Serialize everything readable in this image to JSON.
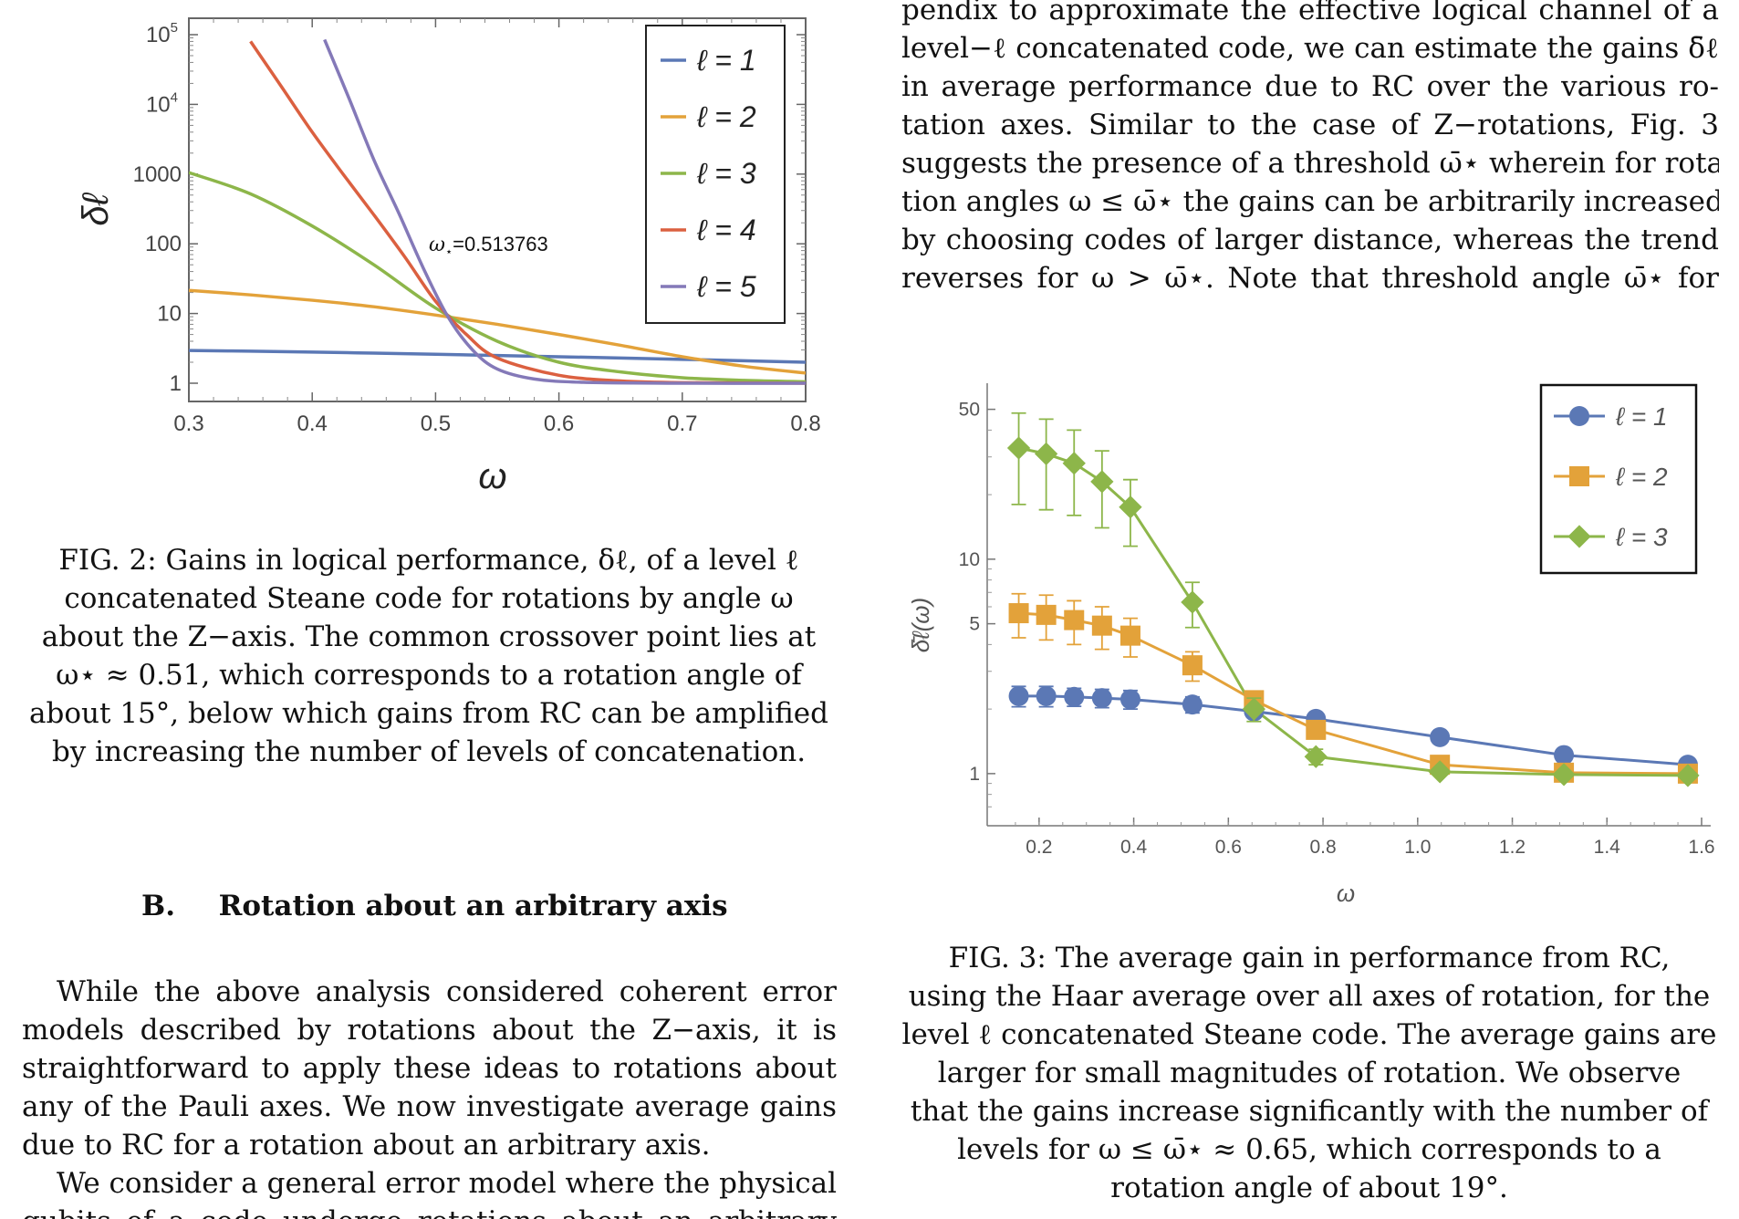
{
  "right_top_paragraph": {
    "lines": [
      "pendix to approximate the effective logical channel of a",
      "level−ℓ concatenated code, we can estimate the gains δ̄ℓ",
      "in average performance due to RC over the various ro-",
      "tation axes.  Similar to the case of Z−rotations, Fig. 3",
      "suggests the presence of a threshold ω̄⋆ wherein for rota-",
      "tion angles ω ≤ ω̄⋆ the gains can be arbitrarily increased",
      "by choosing codes of larger distance, whereas the trend",
      "reverses for ω > ω̄⋆.  Note that threshold angle ω̄⋆ for"
    ]
  },
  "fig2_caption": {
    "lines": [
      "FIG. 2: Gains in logical performance, δℓ, of a level ℓ",
      "concatenated Steane code for rotations by angle ω",
      "about the Z−axis. The common crossover point lies at",
      "ω⋆ ≈ 0.51, which corresponds to a rotation angle of",
      "about 15°, below which gains from RC can be amplified",
      "by increasing the number of levels of concatenation."
    ]
  },
  "section_heading": {
    "number": "B.",
    "title": "Rotation about an arbitrary axis"
  },
  "left_paragraph": {
    "lines": [
      "While the above analysis considered coherent error",
      "models described by rotations about the Z−axis, it is",
      "straightforward to apply these ideas to rotations about",
      "any of the Pauli axes. We now investigate average gains",
      "due to RC for a rotation about an arbitrary axis."
    ]
  },
  "left_paragraph2": {
    "lines": [
      "We consider a general error model where the physical",
      "qubits of a code undergo rotations about an arbitrary"
    ]
  },
  "fig3_caption": {
    "lines": [
      "FIG. 3: The average gain in performance from RC,",
      "using the Haar average over all axes of rotation, for the",
      "level ℓ concatenated Steane code. The average gains are",
      "larger for small magnitudes of rotation. We observe",
      "that the gains increase significantly with the number of",
      "levels for ω ≤ ω̄⋆ ≈ 0.65, which corresponds to a",
      "rotation angle of about 19°."
    ]
  },
  "chart_data": [
    {
      "type": "line",
      "figure": "FIG. 2",
      "xlabel": "ω",
      "ylabel": "δℓ",
      "xlim": [
        0.3,
        0.8
      ],
      "ylim": [
        1,
        100000
      ],
      "yscale": "log",
      "x_ticks": [
        "0.3",
        "0.4",
        "0.5",
        "0.6",
        "0.7",
        "0.8"
      ],
      "y_ticks": [
        "1",
        "10",
        "100",
        "1000",
        "10⁴",
        "10⁵"
      ],
      "annotation": "ω⋆=0.513763",
      "legend_position": "top-right",
      "series": [
        {
          "name": "ℓ = 1",
          "color": "#5b78b5",
          "x": [
            0.3,
            0.35,
            0.4,
            0.45,
            0.5,
            0.55,
            0.6,
            0.65,
            0.7,
            0.75,
            0.8
          ],
          "y": [
            2.95,
            2.88,
            2.8,
            2.7,
            2.6,
            2.5,
            2.4,
            2.3,
            2.2,
            2.1,
            2.0
          ]
        },
        {
          "name": "ℓ = 2",
          "color": "#e3a23a",
          "x": [
            0.3,
            0.35,
            0.4,
            0.45,
            0.5,
            0.55,
            0.6,
            0.65,
            0.7,
            0.75,
            0.8
          ],
          "y": [
            21.5,
            18.5,
            15.5,
            12.5,
            9.5,
            7.0,
            5.0,
            3.5,
            2.4,
            1.75,
            1.4
          ]
        },
        {
          "name": "ℓ = 3",
          "color": "#8db64a",
          "x": [
            0.3,
            0.35,
            0.4,
            0.45,
            0.5,
            0.55,
            0.6,
            0.65,
            0.7,
            0.75,
            0.8
          ],
          "y": [
            1050,
            520,
            180,
            50,
            12,
            4.0,
            2.0,
            1.45,
            1.2,
            1.1,
            1.05
          ]
        },
        {
          "name": "ℓ = 4",
          "color": "#db6040",
          "x": [
            0.35,
            0.375,
            0.4,
            0.425,
            0.45,
            0.475,
            0.5,
            0.525,
            0.55,
            0.6,
            0.65,
            0.7,
            0.8
          ],
          "y": [
            80000,
            18000,
            4000,
            1000,
            260,
            65,
            15,
            5.0,
            2.3,
            1.3,
            1.08,
            1.02,
            1.0
          ]
        },
        {
          "name": "ℓ = 5",
          "color": "#8479b8",
          "x": [
            0.41,
            0.43,
            0.45,
            0.47,
            0.49,
            0.51,
            0.53,
            0.55,
            0.58,
            0.62,
            0.7,
            0.8
          ],
          "y": [
            85000,
            12000,
            1600,
            280,
            45,
            9.0,
            3.0,
            1.6,
            1.15,
            1.03,
            1.0,
            1.0
          ]
        }
      ]
    },
    {
      "type": "line",
      "figure": "FIG. 3",
      "xlabel": "ω",
      "ylabel": "δ̄ℓ(ω)",
      "xlim": [
        0.1,
        1.6
      ],
      "ylim": [
        0.6,
        60
      ],
      "yscale": "log",
      "x_ticks": [
        "0.2",
        "0.4",
        "0.6",
        "0.8",
        "1.0",
        "1.2",
        "1.4",
        "1.6"
      ],
      "y_ticks": [
        "1",
        "5",
        "10",
        "50"
      ],
      "legend_position": "top-right",
      "series": [
        {
          "name": "ℓ = 1",
          "color": "#5b78b5",
          "marker": "circle",
          "x": [
            0.157,
            0.215,
            0.274,
            0.333,
            0.393,
            0.524,
            0.654,
            0.785,
            1.047,
            1.309,
            1.571
          ],
          "y": [
            2.3,
            2.3,
            2.28,
            2.25,
            2.22,
            2.1,
            1.95,
            1.8,
            1.48,
            1.22,
            1.1
          ],
          "err": [
            0.25,
            0.25,
            0.22,
            0.22,
            0.22,
            0.18,
            0.1,
            0.05,
            0.03,
            0.02,
            0.01
          ]
        },
        {
          "name": "ℓ = 2",
          "color": "#e3a23a",
          "marker": "square",
          "x": [
            0.157,
            0.215,
            0.274,
            0.333,
            0.393,
            0.524,
            0.654,
            0.785,
            1.047,
            1.309,
            1.571
          ],
          "y": [
            5.6,
            5.5,
            5.2,
            4.9,
            4.4,
            3.2,
            2.2,
            1.6,
            1.1,
            1.01,
            1.0
          ],
          "err": [
            1.3,
            1.3,
            1.2,
            1.1,
            0.9,
            0.5,
            0.2,
            0.05,
            0.02,
            0.01,
            0.01
          ]
        },
        {
          "name": "ℓ = 3",
          "color": "#8db64a",
          "marker": "diamond",
          "x": [
            0.157,
            0.215,
            0.274,
            0.333,
            0.393,
            0.524,
            0.654,
            0.785,
            1.047,
            1.309,
            1.571
          ],
          "y": [
            33,
            31,
            28,
            23,
            17.5,
            6.3,
            2.0,
            1.2,
            1.02,
            0.99,
            0.98
          ],
          "err": [
            15,
            14,
            12,
            9,
            6,
            1.5,
            0.25,
            0.1,
            0.02,
            0.01,
            0.01
          ]
        }
      ]
    }
  ]
}
